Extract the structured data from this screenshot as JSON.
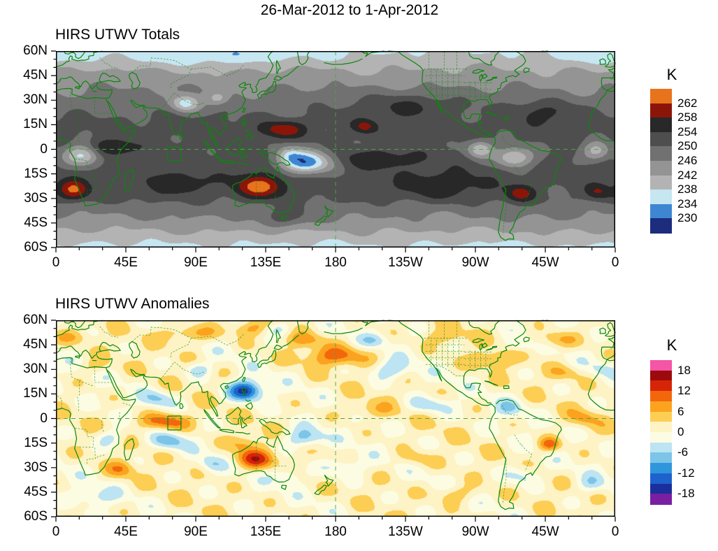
{
  "page": {
    "title": "26-Mar-2012 to 1-Apr-2012"
  },
  "panels": [
    {
      "title": "HIRS UTWV Totals",
      "colorbar": {
        "unit": "K",
        "tick_labels": [
          "262",
          "258",
          "254",
          "250",
          "246",
          "242",
          "238",
          "234",
          "230"
        ]
      }
    },
    {
      "title": "HIRS UTWV Anomalies",
      "colorbar": {
        "unit": "K",
        "tick_labels": [
          "18",
          "12",
          "6",
          "0",
          "-6",
          "-12",
          "-18"
        ]
      }
    }
  ],
  "axes": {
    "x_tick_labels": [
      "0",
      "45E",
      "90E",
      "135E",
      "180",
      "135W",
      "90W",
      "45W",
      "0"
    ],
    "y_tick_labels": [
      "60N",
      "45N",
      "30N",
      "15N",
      "0",
      "15S",
      "30S",
      "45S",
      "60S"
    ]
  },
  "map_style": {
    "coast_color": "#0a870a",
    "ref_line_color": "#4ca64c",
    "frame_color": "#000000"
  },
  "chart_data": [
    {
      "type": "heatmap",
      "title": "HIRS UTWV Totals",
      "units": "K",
      "lon_range": [
        0,
        360
      ],
      "lat_range": [
        -60,
        60
      ],
      "x_ticks_deg": [
        0,
        45,
        90,
        135,
        180,
        225,
        270,
        315,
        360
      ],
      "y_ticks_deg": [
        60,
        45,
        30,
        15,
        0,
        -15,
        -30,
        -45,
        -60
      ],
      "levels": [
        230,
        234,
        238,
        242,
        246,
        250,
        254,
        258,
        262
      ],
      "palette_low_to_high": [
        "#1b2d7c",
        "#3e86d1",
        "#c6e6f2",
        "#b3b3b3",
        "#949494",
        "#717171",
        "#4e4e4e",
        "#282828",
        "#8c1509",
        "#e8731d"
      ],
      "region_box": {
        "lon": [
          72,
          80.5
        ],
        "lat": [
          -7,
          1.5
        ]
      },
      "field_model": {
        "base_by_lat": {
          "lats": [
            60,
            45,
            30,
            15,
            0,
            -15,
            -30,
            -45,
            -60
          ],
          "values": [
            238,
            243.5,
            248,
            251.5,
            251,
            252,
            250.5,
            244.5,
            237
          ]
        },
        "noise_amp": 0.8,
        "blobs": [
          [
            33,
            1,
            20,
            5,
            9
          ],
          [
            146,
            12,
            14,
            5,
            10
          ],
          [
            199,
            14,
            7,
            4,
            8
          ],
          [
            131,
            -23,
            16,
            7,
            13
          ],
          [
            11,
            -25,
            10,
            6,
            12
          ],
          [
            299,
            -27,
            9,
            5,
            9
          ],
          [
            349,
            -26,
            8,
            5,
            8
          ],
          [
            161,
            -8,
            17,
            7,
            -21
          ],
          [
            150,
            -3,
            8,
            5,
            -8
          ],
          [
            17,
            -3,
            12,
            7,
            -17
          ],
          [
            295,
            -5,
            12,
            6,
            -14
          ],
          [
            83,
            28,
            9,
            5,
            -13
          ],
          [
            104,
            31,
            7,
            4,
            -8
          ],
          [
            228,
            27,
            32,
            8,
            6
          ],
          [
            315,
            23,
            22,
            7,
            5
          ],
          [
            205,
            -6,
            28,
            6,
            6
          ],
          [
            245,
            -23,
            30,
            8,
            6
          ],
          [
            80,
            -21,
            22,
            7,
            6
          ],
          [
            147,
            -42,
            16,
            6,
            7
          ],
          [
            100,
            57,
            70,
            6,
            -4
          ],
          [
            350,
            57,
            25,
            5,
            -4
          ],
          [
            273,
            0,
            8,
            5,
            -13
          ],
          [
            348,
            -1,
            9,
            6,
            -12
          ]
        ]
      }
    },
    {
      "type": "heatmap",
      "title": "HIRS UTWV Anomalies",
      "units": "K",
      "lon_range": [
        0,
        360
      ],
      "lat_range": [
        -60,
        60
      ],
      "x_ticks_deg": [
        0,
        45,
        90,
        135,
        180,
        225,
        270,
        315,
        360
      ],
      "y_ticks_deg": [
        60,
        45,
        30,
        15,
        0,
        -15,
        -30,
        -45,
        -60
      ],
      "levels": [
        -18,
        -15,
        -12,
        -9,
        -6,
        -3,
        0,
        3,
        6,
        9,
        12,
        15,
        18
      ],
      "palette_low_to_high": [
        "#7a1fa2",
        "#1a2f9b",
        "#1e62ce",
        "#2f96dc",
        "#7cc4e8",
        "#bce4f2",
        "#fcfce2",
        "#fdf3c4",
        "#fdce54",
        "#fba31e",
        "#f2670b",
        "#d62408",
        "#9c0a0e",
        "#f455a4"
      ],
      "region_box": {
        "lon": [
          72,
          80.5
        ],
        "lat": [
          -7,
          1.5
        ]
      },
      "field_model": {
        "base_by_lat": {
          "lats": [
            60,
            -60
          ],
          "values": [
            1,
            1
          ]
        },
        "noise_amp": 2.0,
        "blobs": [
          [
            70,
            -2,
            16,
            5,
            11
          ],
          [
            128,
            -25,
            13,
            6,
            12
          ],
          [
            120,
            -15,
            10,
            5,
            6
          ],
          [
            318,
            -16,
            7,
            4,
            10
          ],
          [
            42,
            -31,
            9,
            5,
            7
          ],
          [
            180,
            38,
            22,
            6,
            8
          ],
          [
            280,
            36,
            13,
            5,
            6
          ],
          [
            322,
            48,
            14,
            5,
            6
          ],
          [
            85,
            52,
            18,
            5,
            7
          ],
          [
            125,
            55,
            12,
            4,
            6
          ],
          [
            250,
            50,
            12,
            4,
            5
          ],
          [
            200,
            5,
            18,
            5,
            4
          ],
          [
            340,
            0,
            10,
            5,
            5
          ],
          [
            25,
            32,
            10,
            4,
            4
          ],
          [
            258,
            -46,
            14,
            5,
            5
          ],
          [
            328,
            28,
            10,
            4,
            4
          ],
          [
            232,
            -25,
            12,
            5,
            4
          ],
          [
            10,
            50,
            12,
            4,
            4
          ],
          [
            160,
            48,
            12,
            4,
            5
          ],
          [
            122,
            17,
            11,
            6,
            -17
          ],
          [
            65,
            12,
            10,
            5,
            -7
          ],
          [
            73,
            -14,
            11,
            5,
            -8
          ],
          [
            100,
            -28,
            8,
            5,
            -6
          ],
          [
            160,
            -12,
            13,
            6,
            -9
          ],
          [
            150,
            -35,
            10,
            5,
            -5
          ],
          [
            185,
            -30,
            13,
            6,
            -6
          ],
          [
            215,
            30,
            13,
            6,
            -7
          ],
          [
            205,
            48,
            10,
            4,
            -5
          ],
          [
            240,
            8,
            14,
            5,
            -6
          ],
          [
            292,
            6,
            9,
            5,
            -6
          ],
          [
            300,
            -35,
            11,
            6,
            -6
          ],
          [
            345,
            -40,
            9,
            5,
            -5
          ],
          [
            352,
            30,
            8,
            4,
            -4
          ],
          [
            35,
            -12,
            9,
            5,
            -6
          ],
          [
            25,
            -48,
            14,
            5,
            -5
          ],
          [
            298,
            45,
            9,
            4,
            -5
          ],
          [
            143,
            55,
            9,
            4,
            -6
          ],
          [
            92,
            30,
            8,
            4,
            -6
          ]
        ]
      }
    }
  ]
}
